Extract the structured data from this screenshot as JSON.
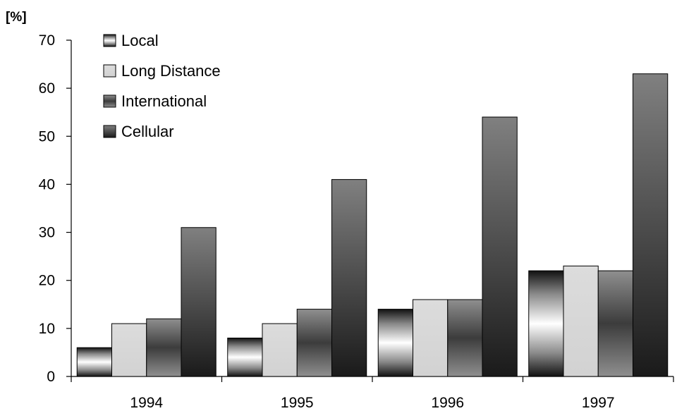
{
  "chart_data": {
    "type": "bar",
    "unit_label": "[%]",
    "categories": [
      "1994",
      "1995",
      "1996",
      "1997"
    ],
    "series": [
      {
        "name": "Local",
        "values": [
          6,
          8,
          14,
          22
        ]
      },
      {
        "name": "Long Distance",
        "values": [
          11,
          11,
          16,
          23
        ]
      },
      {
        "name": "International",
        "values": [
          12,
          14,
          16,
          22
        ]
      },
      {
        "name": "Cellular",
        "values": [
          31,
          41,
          54,
          63
        ]
      }
    ],
    "ylim": [
      0,
      70
    ],
    "yticks": [
      0,
      10,
      20,
      30,
      40,
      50,
      60,
      70
    ],
    "grid": false,
    "legend_position": "top-left"
  }
}
